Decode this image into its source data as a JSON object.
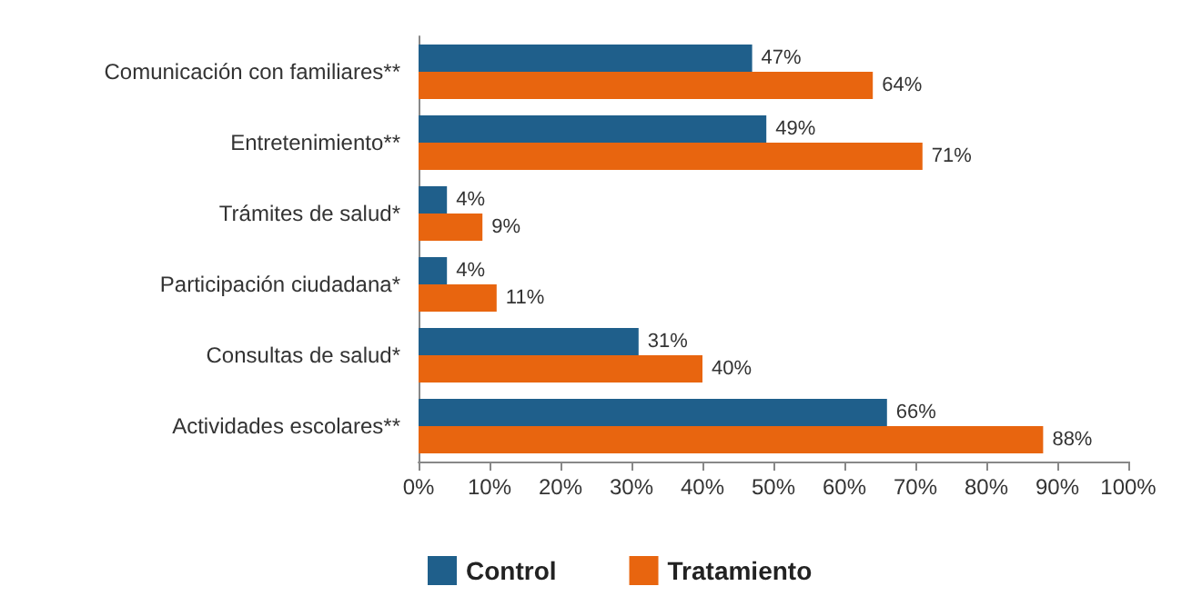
{
  "chart_data": {
    "type": "bar",
    "orientation": "horizontal",
    "categories": [
      "Comunicación con familiares**",
      "Entretenimiento**",
      "Trámites de salud*",
      "Participación ciudadana*",
      "Consultas de salud*",
      "Actividades escolares**"
    ],
    "series": [
      {
        "name": "Control",
        "color": "#1f5f8b",
        "values": [
          47,
          49,
          4,
          4,
          31,
          66
        ],
        "value_labels": [
          "47%",
          "49%",
          "4%",
          "4%",
          "31%",
          "66%"
        ]
      },
      {
        "name": "Tratamiento",
        "color": "#e8650f",
        "values": [
          64,
          71,
          9,
          11,
          40,
          88
        ],
        "value_labels": [
          "64%",
          "71%",
          "9%",
          "11%",
          "40%",
          "88%"
        ]
      }
    ],
    "xlim": [
      0,
      100
    ],
    "xticks": [
      {
        "value": 0,
        "label": "0%"
      },
      {
        "value": 10,
        "label": "10%"
      },
      {
        "value": 20,
        "label": "20%"
      },
      {
        "value": 30,
        "label": "30%"
      },
      {
        "value": 40,
        "label": "40%"
      },
      {
        "value": 50,
        "label": "50%"
      },
      {
        "value": 60,
        "label": "60%"
      },
      {
        "value": 70,
        "label": "70%"
      },
      {
        "value": 80,
        "label": "80%"
      },
      {
        "value": 90,
        "label": "90%"
      },
      {
        "value": 100,
        "label": "100%"
      }
    ],
    "grid": false,
    "legend": "bottom"
  }
}
